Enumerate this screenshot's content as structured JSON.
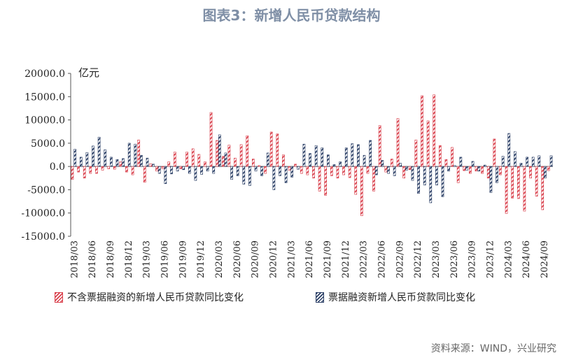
{
  "page": {
    "title": "图表3：新增人民币贷款结构",
    "unit": "亿元",
    "source": "资料来源：WIND，兴业研究"
  },
  "colors": {
    "series1": "#d9404c",
    "series2": "#2b3f66"
  },
  "chart_data": {
    "type": "bar",
    "ylim": [
      -15000,
      20000
    ],
    "yticks": [
      "20000.0",
      "15000.0",
      "10000.0",
      "5000.0",
      "0.0",
      "-5000.0",
      "-10000.0",
      "-15000.0"
    ],
    "xtick_labels": [
      "2018/03",
      "2018/06",
      "2018/09",
      "2018/12",
      "2019/03",
      "2019/06",
      "2019/09",
      "2019/12",
      "2020/03",
      "2020/06",
      "2020/09",
      "2020/12",
      "2021/03",
      "2021/06",
      "2021/09",
      "2021/12",
      "2022/03",
      "2022/06",
      "2022/09",
      "2022/12",
      "2023/03",
      "2023/06",
      "2023/09",
      "2023/12",
      "2024/03",
      "2024/06",
      "2024/09"
    ],
    "categories": [
      "2018/03",
      "2018/04",
      "2018/05",
      "2018/06",
      "2018/07",
      "2018/08",
      "2018/09",
      "2018/10",
      "2018/11",
      "2018/12",
      "2019/01",
      "2019/02",
      "2019/03",
      "2019/04",
      "2019/05",
      "2019/06",
      "2019/07",
      "2019/08",
      "2019/09",
      "2019/10",
      "2019/11",
      "2019/12",
      "2020/01",
      "2020/02",
      "2020/03",
      "2020/04",
      "2020/05",
      "2020/06",
      "2020/07",
      "2020/08",
      "2020/09",
      "2020/10",
      "2020/11",
      "2020/12",
      "2021/01",
      "2021/02",
      "2021/03",
      "2021/04",
      "2021/05",
      "2021/06",
      "2021/07",
      "2021/08",
      "2021/09",
      "2021/10",
      "2021/11",
      "2021/12",
      "2022/01",
      "2022/02",
      "2022/03",
      "2022/04",
      "2022/05",
      "2022/06",
      "2022/07",
      "2022/08",
      "2022/09",
      "2022/10",
      "2022/11",
      "2022/12",
      "2023/01",
      "2023/02",
      "2023/03",
      "2023/04",
      "2023/05",
      "2023/06",
      "2023/07",
      "2023/08",
      "2023/09",
      "2023/10",
      "2023/11",
      "2023/12",
      "2024/01",
      "2024/02",
      "2024/03",
      "2024/04",
      "2024/05",
      "2024/06",
      "2024/07",
      "2024/08",
      "2024/09",
      "2024/10"
    ],
    "series": [
      {
        "name": "不含票据融资的新增人民币贷款同比变化",
        "values": [
          -2800,
          -1200,
          -2500,
          -1500,
          -1500,
          -800,
          -500,
          -600,
          1000,
          -1200,
          -1800,
          5700,
          -3400,
          600,
          -1000,
          -500,
          1000,
          3100,
          -500,
          3100,
          3800,
          2600,
          1000,
          11600,
          5600,
          2200,
          4600,
          1800,
          4700,
          6600,
          1600,
          200,
          -1500,
          7400,
          7000,
          2500,
          -800,
          500,
          -1500,
          -1800,
          -2500,
          -5300,
          -6200,
          -2000,
          -2500,
          -1800,
          -2400,
          -6000,
          -10600,
          -1500,
          -5300,
          8800,
          -1200,
          1600,
          10300,
          -2500,
          -700,
          5700,
          15200,
          9800,
          15400,
          4500,
          1500,
          4100,
          -3500,
          -900,
          -1500,
          -1000,
          -1500,
          -2500,
          5900,
          -1800,
          -10100,
          -6800,
          -6900,
          -9600,
          -2500,
          -6400,
          -9300,
          -900
        ]
      },
      {
        "name": "票据融资新增人民币贷款同比变化",
        "values": [
          3700,
          2000,
          3000,
          4400,
          6300,
          3600,
          2000,
          1500,
          1700,
          5000,
          4800,
          2400,
          1800,
          500,
          -1500,
          -3700,
          -1600,
          -1000,
          -700,
          -1500,
          -3000,
          -1700,
          -1000,
          -1500,
          6800,
          2900,
          -2800,
          -2000,
          -3800,
          -4100,
          -1000,
          -2000,
          2900,
          -5000,
          -2000,
          -3500,
          -2300,
          -600,
          4800,
          2800,
          4500,
          4000,
          2500,
          400,
          1000,
          4000,
          4900,
          4700,
          2400,
          5600,
          -1800,
          1300,
          -1500,
          -2000,
          700,
          -800,
          -3000,
          -5800,
          -4000,
          -7800,
          -4000,
          -6500,
          -1000,
          200,
          2000,
          -800,
          1100,
          -1000,
          300,
          -5600,
          -3500,
          2200,
          7100,
          3200,
          700,
          2000,
          2000,
          2300,
          -2500,
          2300
        ]
      }
    ]
  },
  "legend": {
    "item1": "不含票据融资的新增人民币贷款同比变化",
    "item2": "票据融资新增人民币贷款同比变化"
  }
}
